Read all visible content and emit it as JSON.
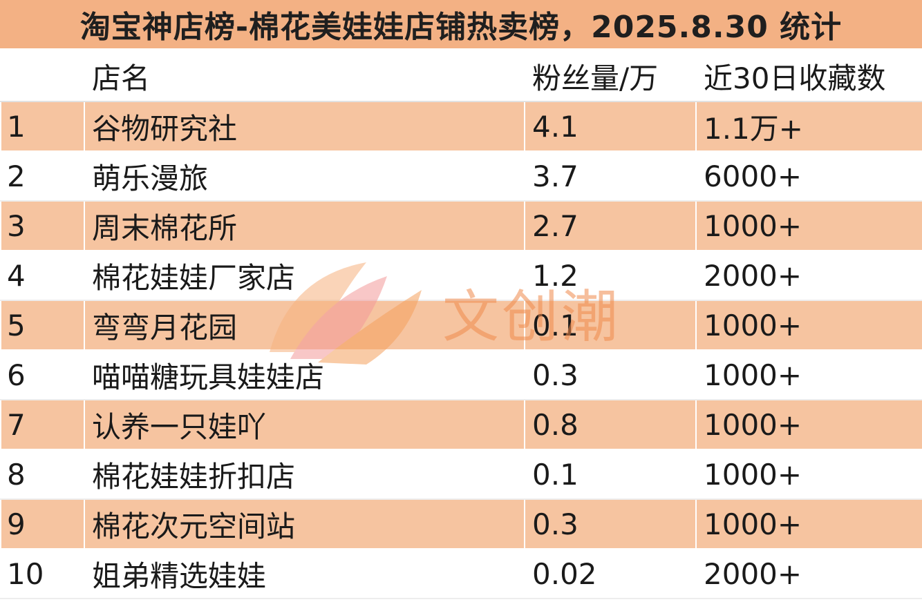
{
  "title": "淘宝神店榜-棉花美娃娃店铺热卖榜，2025.8.30 统计",
  "table": {
    "headers": [
      "",
      "店名",
      "粉丝量/万",
      "近30日收藏数"
    ],
    "rows": [
      {
        "rank": "1",
        "name": "谷物研究社",
        "fans": "4.1",
        "favorites": "1.1万+"
      },
      {
        "rank": "2",
        "name": "萌乐漫旅",
        "fans": "3.7",
        "favorites": "6000+"
      },
      {
        "rank": "3",
        "name": "周末棉花所",
        "fans": "2.7",
        "favorites": "1000+"
      },
      {
        "rank": "4",
        "name": "棉花娃娃厂家店",
        "fans": "1.2",
        "favorites": "2000+"
      },
      {
        "rank": "5",
        "name": "弯弯月花园",
        "fans": "0.1",
        "favorites": "1000+"
      },
      {
        "rank": "6",
        "name": "喵喵糖玩具娃娃店",
        "fans": "0.3",
        "favorites": "1000+"
      },
      {
        "rank": "7",
        "name": "认养一只娃吖",
        "fans": "0.8",
        "favorites": "1000+"
      },
      {
        "rank": "8",
        "name": "棉花娃娃折扣店",
        "fans": "0.1",
        "favorites": "1000+"
      },
      {
        "rank": "9",
        "name": "棉花次元空间站",
        "fans": "0.3",
        "favorites": "1000+"
      },
      {
        "rank": "10",
        "name": "姐弟精选娃娃",
        "fans": "0.02",
        "favorites": "2000+"
      }
    ]
  },
  "watermark": {
    "text": "文创潮",
    "color": "#f08a4c"
  },
  "colors": {
    "title_bg": "#f3b184",
    "stripe_bg": "#f6c4a0"
  }
}
